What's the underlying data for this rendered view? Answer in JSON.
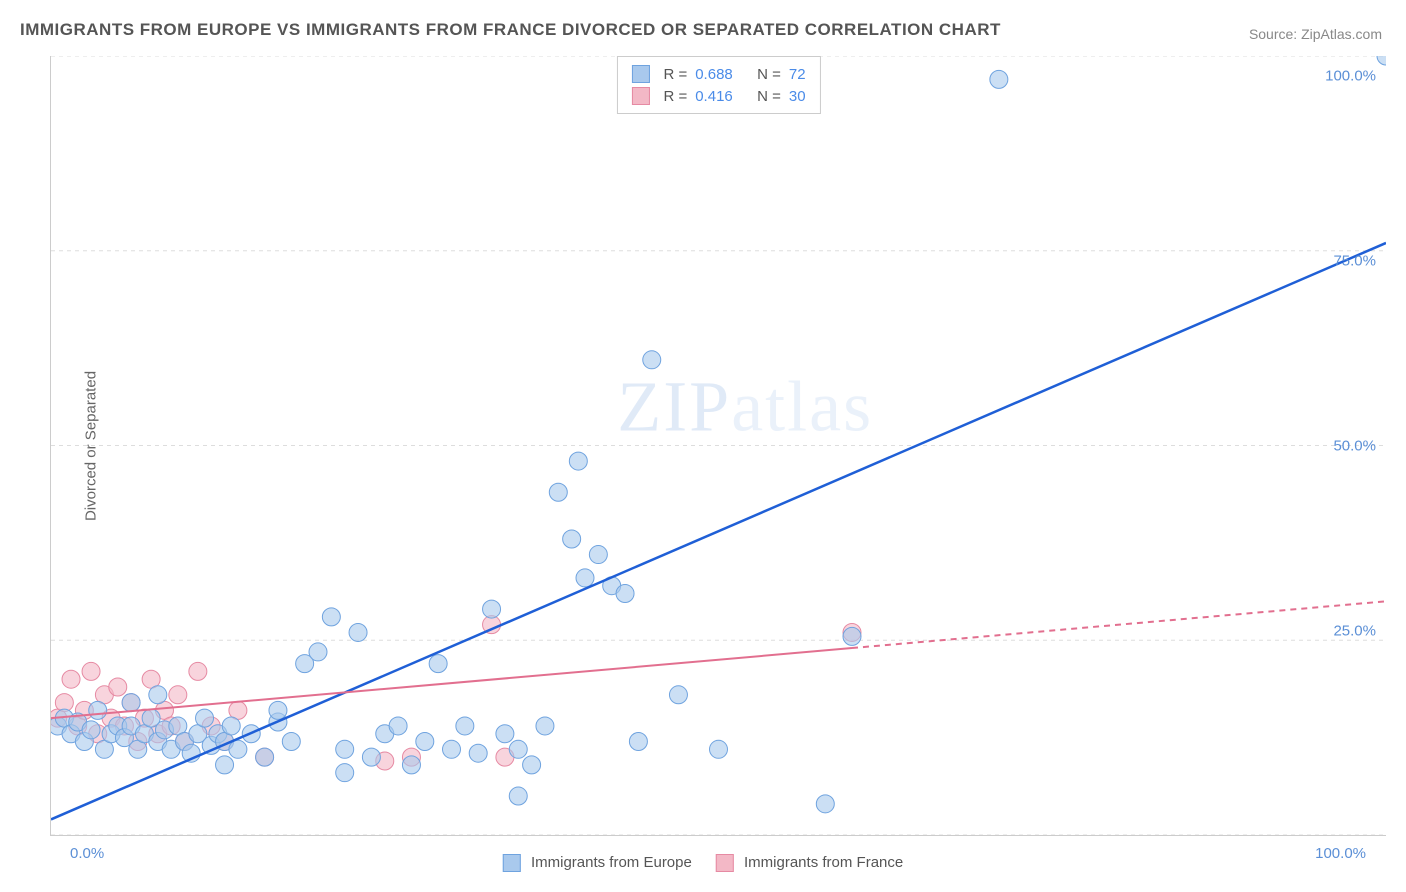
{
  "title": "IMMIGRANTS FROM EUROPE VS IMMIGRANTS FROM FRANCE DIVORCED OR SEPARATED CORRELATION CHART",
  "source_label": "Source: ZipAtlas.com",
  "watermark": "ZIPatlas",
  "y_axis_label": "Divorced or Separated",
  "chart": {
    "type": "scatter",
    "xlim": [
      0,
      100
    ],
    "ylim": [
      0,
      100
    ],
    "x_ticks": [
      0,
      100
    ],
    "x_tick_labels": [
      "0.0%",
      "100.0%"
    ],
    "y_ticks": [
      25,
      50,
      75,
      100
    ],
    "y_tick_labels": [
      "25.0%",
      "50.0%",
      "75.0%",
      "100.0%"
    ],
    "grid_y": [
      0,
      25,
      50,
      75,
      100
    ],
    "background_color": "#ffffff",
    "grid_color": "#dddddd",
    "axis_color": "#cccccc",
    "tick_label_color": "#5b8fd6",
    "series": [
      {
        "name": "Immigrants from Europe",
        "color_fill": "#a9c9ed",
        "color_stroke": "#6fa3df",
        "marker_radius": 9,
        "marker_opacity": 0.6,
        "trend_color": "#1f5fd6",
        "trend_width": 2.5,
        "trend_dash": "none",
        "trend_start": [
          0,
          2
        ],
        "trend_end": [
          100,
          76
        ],
        "trend_solid_end_x": 100,
        "R": "0.688",
        "N": "72",
        "points": [
          [
            0.5,
            14
          ],
          [
            1,
            15
          ],
          [
            1.5,
            13
          ],
          [
            2,
            14.5
          ],
          [
            2.5,
            12
          ],
          [
            3,
            13.5
          ],
          [
            3.5,
            16
          ],
          [
            4,
            11
          ],
          [
            4.5,
            13
          ],
          [
            5,
            14
          ],
          [
            5.5,
            12.5
          ],
          [
            6,
            14
          ],
          [
            6.5,
            11
          ],
          [
            7,
            13
          ],
          [
            7.5,
            15
          ],
          [
            8,
            12
          ],
          [
            8.5,
            13.5
          ],
          [
            9,
            11
          ],
          [
            9.5,
            14
          ],
          [
            10,
            12
          ],
          [
            10.5,
            10.5
          ],
          [
            11,
            13
          ],
          [
            11.5,
            15
          ],
          [
            12,
            11.5
          ],
          [
            12.5,
            13
          ],
          [
            13,
            12
          ],
          [
            13.5,
            14
          ],
          [
            14,
            11
          ],
          [
            15,
            13
          ],
          [
            16,
            10
          ],
          [
            17,
            14.5
          ],
          [
            18,
            12
          ],
          [
            19,
            22
          ],
          [
            20,
            23.5
          ],
          [
            21,
            28
          ],
          [
            22,
            11
          ],
          [
            23,
            26
          ],
          [
            24,
            10
          ],
          [
            25,
            13
          ],
          [
            26,
            14
          ],
          [
            27,
            9
          ],
          [
            28,
            12
          ],
          [
            29,
            22
          ],
          [
            30,
            11
          ],
          [
            31,
            14
          ],
          [
            32,
            10.5
          ],
          [
            33,
            29
          ],
          [
            34,
            13
          ],
          [
            35,
            11
          ],
          [
            36,
            9
          ],
          [
            37,
            14
          ],
          [
            38,
            44
          ],
          [
            39,
            38
          ],
          [
            39.5,
            48
          ],
          [
            40,
            33
          ],
          [
            41,
            36
          ],
          [
            42,
            32
          ],
          [
            43,
            31
          ],
          [
            44,
            12
          ],
          [
            45,
            61
          ],
          [
            47,
            18
          ],
          [
            50,
            11
          ],
          [
            58,
            4
          ],
          [
            60,
            25.5
          ],
          [
            71,
            97
          ],
          [
            100,
            100
          ],
          [
            6,
            17
          ],
          [
            8,
            18
          ],
          [
            13,
            9
          ],
          [
            17,
            16
          ],
          [
            22,
            8
          ],
          [
            35,
            5
          ]
        ]
      },
      {
        "name": "Immigrants from France",
        "color_fill": "#f3b8c6",
        "color_stroke": "#e68aa3",
        "marker_radius": 9,
        "marker_opacity": 0.6,
        "trend_color": "#e26f8f",
        "trend_width": 2,
        "trend_dash": "dashed",
        "trend_start": [
          0,
          15
        ],
        "trend_end": [
          100,
          30
        ],
        "trend_solid_end_x": 60,
        "R": "0.416",
        "N": "30",
        "points": [
          [
            0.5,
            15
          ],
          [
            1,
            17
          ],
          [
            1.5,
            20
          ],
          [
            2,
            14
          ],
          [
            2.5,
            16
          ],
          [
            3,
            21
          ],
          [
            3.5,
            13
          ],
          [
            4,
            18
          ],
          [
            4.5,
            15
          ],
          [
            5,
            19
          ],
          [
            5.5,
            14
          ],
          [
            6,
            17
          ],
          [
            6.5,
            12
          ],
          [
            7,
            15
          ],
          [
            7.5,
            20
          ],
          [
            8,
            13
          ],
          [
            8.5,
            16
          ],
          [
            9,
            14
          ],
          [
            9.5,
            18
          ],
          [
            10,
            12
          ],
          [
            11,
            21
          ],
          [
            12,
            14
          ],
          [
            13,
            12
          ],
          [
            14,
            16
          ],
          [
            16,
            10
          ],
          [
            25,
            9.5
          ],
          [
            27,
            10
          ],
          [
            33,
            27
          ],
          [
            34,
            10
          ],
          [
            60,
            26
          ]
        ]
      }
    ]
  },
  "bottom_legend": {
    "items": [
      {
        "label": "Immigrants from Europe",
        "fill": "#a9c9ed",
        "stroke": "#6fa3df"
      },
      {
        "label": "Immigrants from France",
        "fill": "#f3b8c6",
        "stroke": "#e68aa3"
      }
    ]
  },
  "stats_box": {
    "rows": [
      {
        "swatch_fill": "#a9c9ed",
        "swatch_stroke": "#6fa3df",
        "r_label": "R =",
        "r_val": "0.688",
        "n_label": "N =",
        "n_val": "72"
      },
      {
        "swatch_fill": "#f3b8c6",
        "swatch_stroke": "#e68aa3",
        "r_label": "R =",
        "r_val": "0.416",
        "n_label": "N =",
        "n_val": "30"
      }
    ]
  }
}
